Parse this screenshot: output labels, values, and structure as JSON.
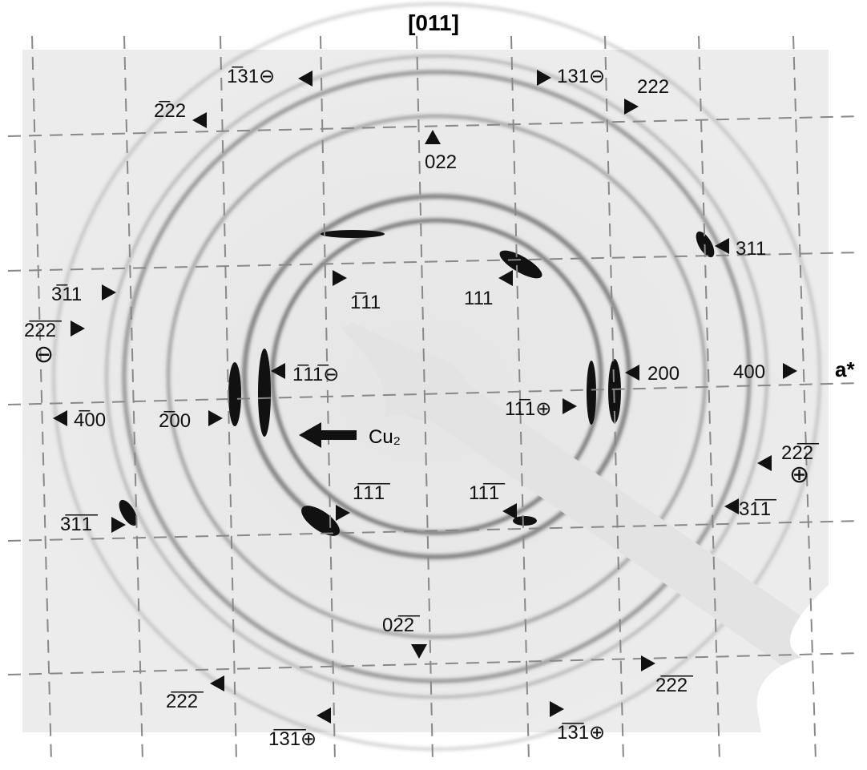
{
  "title": "[011]",
  "axis_label": "a*",
  "annotation": "Cu₂",
  "labels": [
    "1̅31⊖",
    "131⊖",
    "2̅22",
    "222",
    "022",
    "311",
    "3̅11",
    "1̅11",
    "111",
    "2̅2̅2̅",
    "⊖",
    "1̅11̅⊖",
    "200",
    "400",
    "4̅00",
    "2̅00",
    "11̅1⊕",
    "22̅2̅",
    "⊕",
    "31̅1̅",
    "3̅1̅1̅",
    "1̅1̅1̅",
    "11̅1̅",
    "02̅2̅",
    "2̅2̅2̅",
    "2̅2̅2̅",
    "1̅3̅1̅⊕",
    "1̅3̅1⊕"
  ]
}
